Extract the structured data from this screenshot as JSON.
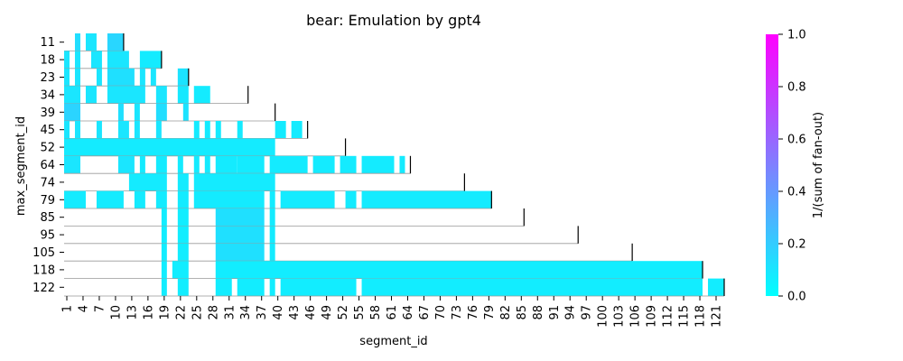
{
  "chart_data": {
    "type": "heatmap",
    "title": "bear: Emulation by gpt4",
    "xlabel": "segment_id",
    "ylabel": "max_segment_id",
    "x_range": [
      1,
      122
    ],
    "x_tick_labels": [
      "1",
      "4",
      "7",
      "10",
      "13",
      "16",
      "19",
      "22",
      "25",
      "28",
      "31",
      "34",
      "37",
      "40",
      "43",
      "46",
      "49",
      "52",
      "55",
      "58",
      "61",
      "64",
      "67",
      "70",
      "73",
      "76",
      "79",
      "82",
      "85",
      "88",
      "91",
      "94",
      "97",
      "100",
      "103",
      "106",
      "109",
      "112",
      "115",
      "118",
      "121"
    ],
    "rows": [
      {
        "label": "11",
        "cells": [
          [
            3,
            3,
            0.13
          ],
          [
            5,
            6,
            0.1
          ],
          [
            9,
            11,
            0.16
          ]
        ]
      },
      {
        "label": "18",
        "cells": [
          [
            1,
            1,
            0.1
          ],
          [
            3,
            3,
            0.1
          ],
          [
            6,
            7,
            0.1
          ],
          [
            9,
            12,
            0.1
          ],
          [
            15,
            18,
            0.08
          ]
        ]
      },
      {
        "label": "23",
        "cells": [
          [
            1,
            1,
            0.1
          ],
          [
            3,
            3,
            0.1
          ],
          [
            7,
            7,
            0.1
          ],
          [
            9,
            13,
            0.12
          ],
          [
            15,
            15,
            0.1
          ],
          [
            17,
            17,
            0.1
          ],
          [
            22,
            23,
            0.11
          ]
        ]
      },
      {
        "label": "34",
        "cells": [
          [
            1,
            3,
            0.1
          ],
          [
            5,
            6,
            0.1
          ],
          [
            9,
            15,
            0.1
          ],
          [
            18,
            19,
            0.1
          ],
          [
            22,
            23,
            0.09
          ],
          [
            25,
            27,
            0.08
          ]
        ]
      },
      {
        "label": "39",
        "cells": [
          [
            1,
            3,
            0.17
          ],
          [
            11,
            11,
            0.12
          ],
          [
            14,
            14,
            0.1
          ],
          [
            18,
            19,
            0.13
          ],
          [
            23,
            23,
            0.11
          ]
        ]
      },
      {
        "label": "45",
        "cells": [
          [
            1,
            1,
            0.1
          ],
          [
            3,
            3,
            0.1
          ],
          [
            7,
            7,
            0.1
          ],
          [
            11,
            12,
            0.1
          ],
          [
            14,
            14,
            0.1
          ],
          [
            18,
            18,
            0.1
          ],
          [
            25,
            25,
            0.08
          ],
          [
            27,
            27,
            0.08
          ],
          [
            29,
            29,
            0.08
          ],
          [
            33,
            33,
            0.08
          ],
          [
            40,
            41,
            0.08
          ],
          [
            43,
            44,
            0.08
          ]
        ]
      },
      {
        "label": "52",
        "cells": [
          [
            1,
            39,
            0.08
          ]
        ]
      },
      {
        "label": "64",
        "cells": [
          [
            1,
            3,
            0.1
          ],
          [
            11,
            13,
            0.1
          ],
          [
            15,
            15,
            0.08
          ],
          [
            18,
            19,
            0.08
          ],
          [
            22,
            22,
            0.08
          ],
          [
            25,
            25,
            0.08
          ],
          [
            27,
            27,
            0.08
          ],
          [
            29,
            32,
            0.08
          ],
          [
            33,
            37,
            0.08
          ],
          [
            39,
            45,
            0.08
          ],
          [
            47,
            50,
            0.08
          ],
          [
            52,
            54,
            0.08
          ],
          [
            56,
            61,
            0.08
          ],
          [
            63,
            63,
            0.08
          ]
        ]
      },
      {
        "label": "74",
        "cells": [
          [
            13,
            19,
            0.08
          ],
          [
            22,
            23,
            0.08
          ],
          [
            25,
            39,
            0.08
          ]
        ]
      },
      {
        "label": "79",
        "cells": [
          [
            1,
            4,
            0.08
          ],
          [
            7,
            11,
            0.08
          ],
          [
            14,
            15,
            0.08
          ],
          [
            18,
            19,
            0.08
          ],
          [
            22,
            23,
            0.08
          ],
          [
            25,
            37,
            0.08
          ],
          [
            39,
            39,
            0.08
          ],
          [
            41,
            50,
            0.08
          ],
          [
            53,
            54,
            0.08
          ],
          [
            56,
            79,
            0.08
          ]
        ]
      },
      {
        "label": "85",
        "cells": [
          [
            19,
            19,
            0.07
          ],
          [
            22,
            23,
            0.07
          ],
          [
            29,
            37,
            0.12
          ],
          [
            39,
            39,
            0.08
          ]
        ]
      },
      {
        "label": "95",
        "cells": [
          [
            19,
            19,
            0.07
          ],
          [
            22,
            23,
            0.07
          ],
          [
            29,
            37,
            0.12
          ],
          [
            39,
            39,
            0.08
          ]
        ]
      },
      {
        "label": "105",
        "cells": [
          [
            19,
            19,
            0.07
          ],
          [
            22,
            23,
            0.07
          ],
          [
            29,
            37,
            0.12
          ],
          [
            39,
            39,
            0.08
          ]
        ]
      },
      {
        "label": "118",
        "cells": [
          [
            19,
            19,
            0.07
          ],
          [
            21,
            23,
            0.07
          ],
          [
            29,
            118,
            0.07
          ]
        ]
      },
      {
        "label": "122",
        "cells": [
          [
            19,
            19,
            0.07
          ],
          [
            22,
            23,
            0.07
          ],
          [
            29,
            31,
            0.07
          ],
          [
            33,
            37,
            0.07
          ],
          [
            39,
            39,
            0.07
          ],
          [
            41,
            54,
            0.07
          ],
          [
            56,
            118,
            0.07
          ],
          [
            120,
            122,
            0.07
          ]
        ]
      }
    ],
    "colorbar": {
      "label": "1/(sum of fan-out)",
      "range": [
        0,
        1
      ],
      "ticks": [
        "0.0",
        "0.2",
        "0.4",
        "0.6",
        "0.8",
        "1.0"
      ],
      "colormap": "cool",
      "low_color": "#00ffff",
      "high_color": "#ff00ff"
    },
    "grid": false,
    "row_baseline_color": "#999999",
    "marker_color": "#000000"
  }
}
